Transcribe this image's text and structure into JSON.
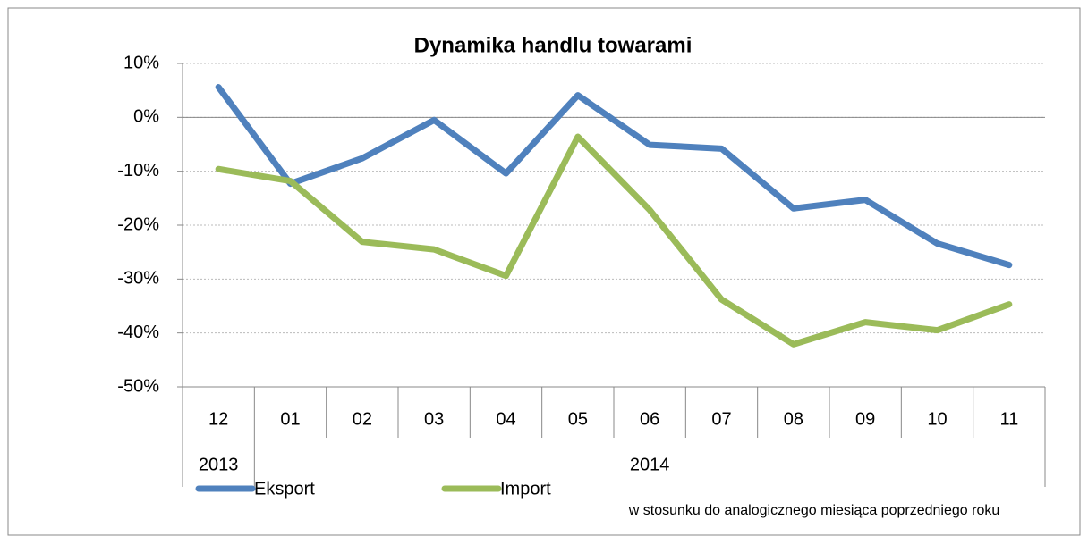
{
  "chart_data": {
    "type": "line",
    "title": "Dynamika handlu towarami",
    "categories": [
      "12",
      "01",
      "02",
      "03",
      "04",
      "05",
      "06",
      "07",
      "08",
      "09",
      "10",
      "11"
    ],
    "groups": [
      {
        "label": "2013",
        "count": 1
      },
      {
        "label": "2014",
        "count": 11
      }
    ],
    "series": [
      {
        "name": "Eksport",
        "color": "#4f81bd",
        "values": [
          5.6,
          -12.3,
          -7.6,
          -0.5,
          -10.4,
          4.1,
          -5.1,
          -5.8,
          -16.9,
          -15.3,
          -23.4,
          -27.4
        ]
      },
      {
        "name": "Import",
        "color": "#9bbb59",
        "values": [
          -9.6,
          -11.8,
          -23.1,
          -24.5,
          -29.4,
          -3.6,
          -17.2,
          -33.8,
          -42.1,
          -38.0,
          -39.5,
          -34.7
        ]
      }
    ],
    "ylim": [
      -50,
      10
    ],
    "yticks": [
      {
        "value": -50,
        "label": "-50%"
      },
      {
        "value": -40,
        "label": "-40%"
      },
      {
        "value": -30,
        "label": "-30%"
      },
      {
        "value": -20,
        "label": "-20%"
      },
      {
        "value": -10,
        "label": "-10%"
      },
      {
        "value": 0,
        "label": "0%"
      },
      {
        "value": 10,
        "label": "10%"
      }
    ],
    "grid": true,
    "legend": "bottom-left",
    "annotation": "w stosunku do analogicznego miesiąca poprzedniego roku"
  }
}
